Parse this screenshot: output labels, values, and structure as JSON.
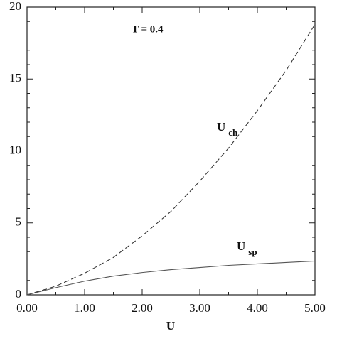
{
  "chart_data": {
    "type": "line",
    "x": [
      0,
      0.5,
      1,
      1.5,
      2,
      2.5,
      3,
      3.5,
      4,
      4.5,
      5
    ],
    "series": [
      {
        "name": "U",
        "subscript": "ch",
        "color": "#333333",
        "dash": true,
        "values": [
          0,
          0.6,
          1.5,
          2.6,
          4.1,
          5.8,
          7.9,
          10.2,
          12.8,
          15.6,
          18.8
        ]
      },
      {
        "name": "U",
        "subscript": "sp",
        "color": "#555555",
        "dash": false,
        "values": [
          0,
          0.5,
          0.95,
          1.3,
          1.55,
          1.75,
          1.9,
          2.05,
          2.15,
          2.25,
          2.35
        ]
      }
    ],
    "annotation": "T = 0.4",
    "xlabel": "U",
    "xlim": [
      0,
      5
    ],
    "ylim": [
      0,
      20
    ],
    "xticks": [
      {
        "value": 0,
        "label": "0.00"
      },
      {
        "value": 1,
        "label": "1.00"
      },
      {
        "value": 2,
        "label": "2.00"
      },
      {
        "value": 3,
        "label": "3.00"
      },
      {
        "value": 4,
        "label": "4.00"
      },
      {
        "value": 5,
        "label": "5.00"
      }
    ],
    "xminorticks": [
      0.5,
      1.5,
      2.5,
      3.5,
      4.5
    ],
    "yticks": [
      0,
      5,
      10,
      15,
      20
    ],
    "yminorticks": [
      1,
      2,
      3,
      4,
      6,
      7,
      8,
      9,
      11,
      12,
      13,
      14,
      16,
      17,
      18,
      19
    ]
  }
}
